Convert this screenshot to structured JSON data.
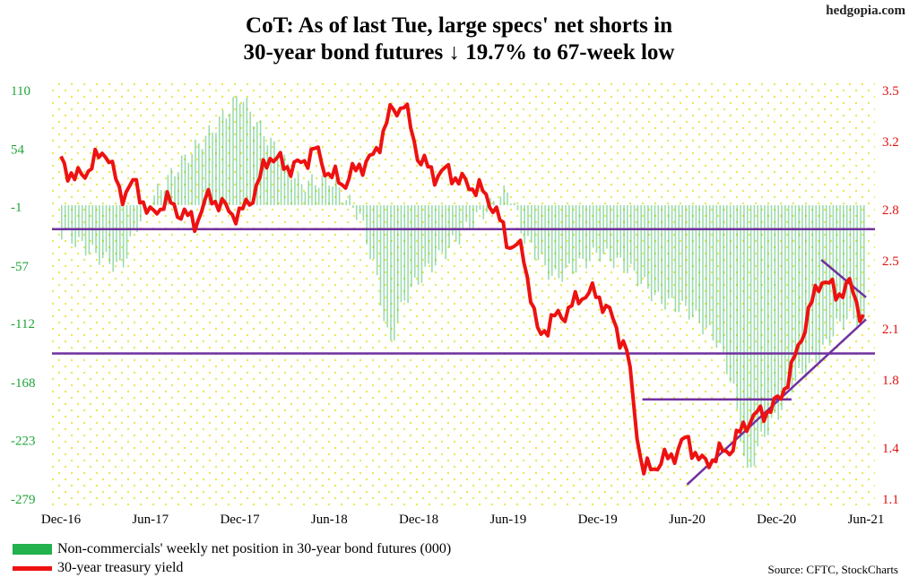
{
  "title_line1": "CoT: As of last Tue, large specs' net shorts in",
  "title_line2": "30-year bond futures ↓ 19.7% to 67-week low",
  "brand": "hedgopia.com",
  "source": "Source: CFTC, StockCharts",
  "legend": {
    "bars": "Non-commercials' weekly net position in 30-year bond futures (000)",
    "line": "30-year treasury yield"
  },
  "colors": {
    "bars": "#22b14c",
    "line": "#ee1111",
    "trendlines": "#7030a0",
    "left_axis_text": "#22a33a",
    "right_axis_text": "#e01010",
    "background_dots": "#e8e85a"
  },
  "chart_data": {
    "type": "bar+line",
    "x_tick_labels": [
      "Dec-16",
      "Jun-17",
      "Dec-17",
      "Jun-18",
      "Dec-18",
      "Jun-19",
      "Dec-19",
      "Jun-20",
      "Dec-20",
      "Jun-21"
    ],
    "left_axis": {
      "ticks": [
        110,
        54,
        -1,
        -57,
        -112,
        -168,
        -223,
        -279
      ],
      "ylim": [
        -279,
        110
      ]
    },
    "right_axis": {
      "ticks": [
        "3.5",
        "3.2",
        "2.8",
        "2.5",
        "2.1",
        "1.8",
        "1.4",
        "1.1"
      ],
      "ylim": [
        1.1,
        3.5
      ]
    },
    "series": [
      {
        "name": "Non-commercials' weekly net position in 30-year bond futures (000)",
        "kind": "bar",
        "axis": "left",
        "anchors": [
          [
            "Dec-16",
            -25
          ],
          [
            "Feb-17",
            -45
          ],
          [
            "Apr-17",
            -60
          ],
          [
            "May-17",
            -20
          ],
          [
            "Jun-17",
            5
          ],
          [
            "Aug-17",
            40
          ],
          [
            "Oct-17",
            70
          ],
          [
            "Dec-17",
            105
          ],
          [
            "Jan-18",
            80
          ],
          [
            "Mar-18",
            40
          ],
          [
            "Apr-18",
            20
          ],
          [
            "Jun-18",
            25
          ],
          [
            "Aug-18",
            -10
          ],
          [
            "Sep-18",
            -60
          ],
          [
            "Oct-18",
            -135
          ],
          [
            "Nov-18",
            -90
          ],
          [
            "Dec-18",
            -70
          ],
          [
            "Feb-19",
            -40
          ],
          [
            "Apr-19",
            -10
          ],
          [
            "Jun-19",
            15
          ],
          [
            "Jul-19",
            -30
          ],
          [
            "Sep-19",
            -70
          ],
          [
            "Nov-19",
            -55
          ],
          [
            "Dec-19",
            -45
          ],
          [
            "Feb-20",
            -60
          ],
          [
            "Apr-20",
            -90
          ],
          [
            "Jun-20",
            -100
          ],
          [
            "Aug-20",
            -130
          ],
          [
            "Sep-20",
            -170
          ],
          [
            "Oct-20",
            -258
          ],
          [
            "Nov-20",
            -220
          ],
          [
            "Dec-20",
            -200
          ],
          [
            "Jan-21",
            -170
          ],
          [
            "Mar-21",
            -140
          ],
          [
            "Apr-21",
            -115
          ],
          [
            "May-21",
            -105
          ],
          [
            "Jun-21",
            -120
          ]
        ]
      },
      {
        "name": "30-year treasury yield",
        "kind": "line",
        "axis": "right",
        "anchors": [
          [
            "Dec-16",
            3.08
          ],
          [
            "Jan-17",
            2.97
          ],
          [
            "Feb-17",
            3.05
          ],
          [
            "Mar-17",
            3.15
          ],
          [
            "Apr-17",
            2.88
          ],
          [
            "May-17",
            2.95
          ],
          [
            "Jun-17",
            2.75
          ],
          [
            "Jul-17",
            2.85
          ],
          [
            "Aug-17",
            2.78
          ],
          [
            "Sep-17",
            2.72
          ],
          [
            "Oct-17",
            2.88
          ],
          [
            "Nov-17",
            2.8
          ],
          [
            "Dec-17",
            2.76
          ],
          [
            "Jan-18",
            2.9
          ],
          [
            "Feb-18",
            3.12
          ],
          [
            "Mar-18",
            3.05
          ],
          [
            "Apr-18",
            3.05
          ],
          [
            "May-18",
            3.15
          ],
          [
            "Jun-18",
            3.0
          ],
          [
            "Jul-18",
            2.95
          ],
          [
            "Aug-18",
            3.05
          ],
          [
            "Sep-18",
            3.1
          ],
          [
            "Oct-18",
            3.35
          ],
          [
            "Nov-18",
            3.42
          ],
          [
            "Dec-18",
            3.1
          ],
          [
            "Jan-19",
            3.0
          ],
          [
            "Feb-19",
            3.02
          ],
          [
            "Mar-19",
            2.95
          ],
          [
            "Apr-19",
            2.92
          ],
          [
            "May-19",
            2.82
          ],
          [
            "Jun-19",
            2.6
          ],
          [
            "Jul-19",
            2.55
          ],
          [
            "Aug-19",
            2.05
          ],
          [
            "Sep-19",
            2.15
          ],
          [
            "Oct-19",
            2.2
          ],
          [
            "Nov-19",
            2.3
          ],
          [
            "Dec-19",
            2.3
          ],
          [
            "Jan-20",
            2.15
          ],
          [
            "Feb-20",
            1.95
          ],
          [
            "Mar-20",
            1.25
          ],
          [
            "Apr-20",
            1.3
          ],
          [
            "May-20",
            1.35
          ],
          [
            "Jun-20",
            1.45
          ],
          [
            "Jul-20",
            1.3
          ],
          [
            "Aug-20",
            1.35
          ],
          [
            "Sep-20",
            1.4
          ],
          [
            "Oct-20",
            1.55
          ],
          [
            "Nov-20",
            1.6
          ],
          [
            "Dec-20",
            1.65
          ],
          [
            "Jan-21",
            1.85
          ],
          [
            "Feb-21",
            2.15
          ],
          [
            "Mar-21",
            2.4
          ],
          [
            "Apr-21",
            2.3
          ],
          [
            "May-21",
            2.35
          ],
          [
            "Jun-21",
            2.1
          ]
        ]
      }
    ],
    "annotations": [
      {
        "kind": "horizontal line",
        "axis": "right",
        "y": 2.68,
        "from": "Dec-16",
        "to": "Jun-21"
      },
      {
        "kind": "horizontal line",
        "axis": "right",
        "y": 1.95,
        "from": "Dec-16",
        "to": "Jun-21"
      },
      {
        "kind": "horizontal line",
        "axis": "right",
        "y": 1.68,
        "from": "Mar-20",
        "to": "Jan-21"
      },
      {
        "kind": "rising trendline",
        "axis": "right",
        "from": [
          "Jun-20",
          1.18
        ],
        "to": [
          "Jun-21",
          2.15
        ]
      },
      {
        "kind": "falling trendline",
        "axis": "right",
        "from": [
          "Mar-21",
          2.5
        ],
        "to": [
          "Jun-21",
          2.28
        ]
      }
    ],
    "grid": "dotted background",
    "legend_position": "bottom-left"
  }
}
